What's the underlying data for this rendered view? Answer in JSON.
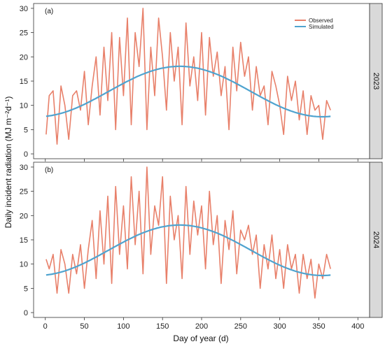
{
  "y_axis_label": "Daily incident radiation (MJ m⁻²d⁻¹)",
  "x_axis_label": "Day of year (d)",
  "legend": {
    "observed": "Observed",
    "simulated": "Simulated"
  },
  "colors": {
    "observed": "#e8806a",
    "simulated": "#4fa3cf",
    "strip": "#d9d9d9"
  },
  "chart_data": [
    {
      "type": "line",
      "panel_label": "(a)",
      "strip_label": "2023",
      "xlim": [
        -15,
        415
      ],
      "ylim": [
        -1,
        31
      ],
      "x_ticks": [
        0,
        50,
        100,
        150,
        200,
        250,
        300,
        350,
        400
      ],
      "y_ticks": [
        0,
        5,
        10,
        15,
        20,
        25,
        30
      ],
      "simulated_model": {
        "mean": 12.85,
        "amplitude": 5.2,
        "peak_day": 172,
        "period_days": 365
      },
      "series": [
        {
          "name": "Observed",
          "x": [
            1,
            5,
            10,
            15,
            20,
            25,
            30,
            35,
            40,
            45,
            50,
            55,
            60,
            65,
            70,
            75,
            80,
            85,
            90,
            95,
            100,
            105,
            110,
            115,
            120,
            125,
            130,
            135,
            140,
            145,
            150,
            155,
            160,
            165,
            170,
            175,
            180,
            185,
            190,
            195,
            200,
            205,
            210,
            215,
            220,
            225,
            230,
            235,
            240,
            245,
            250,
            255,
            260,
            265,
            270,
            275,
            280,
            285,
            290,
            295,
            300,
            305,
            310,
            315,
            320,
            325,
            330,
            335,
            340,
            345,
            350,
            355,
            360,
            365
          ],
          "y": [
            4,
            12,
            13,
            2,
            14,
            10,
            3,
            12,
            13,
            9,
            17,
            6,
            14,
            20,
            8,
            22,
            11,
            25,
            5,
            24,
            12,
            28,
            6,
            25,
            18,
            30,
            5,
            22,
            12,
            28,
            20,
            9,
            25,
            15,
            22,
            6,
            27,
            14,
            20,
            11,
            25,
            8,
            24,
            16,
            21,
            12,
            18,
            5,
            22,
            13,
            23,
            16,
            20,
            9,
            18,
            12,
            14,
            6,
            17,
            14,
            10,
            4,
            16,
            11,
            15,
            7,
            13,
            4,
            12,
            9,
            10,
            3,
            11,
            9
          ]
        },
        {
          "name": "Simulated",
          "x": [
            1,
            15,
            30,
            45,
            60,
            75,
            90,
            105,
            120,
            135,
            150,
            165,
            172,
            180,
            195,
            210,
            225,
            240,
            255,
            270,
            285,
            300,
            315,
            330,
            345,
            365
          ],
          "y": [
            7.8,
            8.0,
            8.7,
            9.6,
            10.7,
            11.9,
            13.2,
            14.5,
            15.7,
            16.7,
            17.4,
            17.9,
            18.0,
            18.0,
            17.6,
            16.9,
            16.0,
            14.8,
            13.6,
            12.3,
            11.1,
            9.9,
            8.9,
            8.2,
            7.8,
            7.7
          ]
        }
      ]
    },
    {
      "type": "line",
      "panel_label": "(b)",
      "strip_label": "2024",
      "xlim": [
        -15,
        415
      ],
      "ylim": [
        -1,
        31
      ],
      "x_ticks": [
        0,
        50,
        100,
        150,
        200,
        250,
        300,
        350,
        400
      ],
      "y_ticks": [
        0,
        5,
        10,
        15,
        20,
        25,
        30
      ],
      "x_tick_labels": [
        "0",
        "50",
        "100",
        "150",
        "200",
        "250",
        "300",
        "350",
        "400"
      ],
      "simulated_model": {
        "mean": 12.85,
        "amplitude": 5.2,
        "peak_day": 172,
        "period_days": 365
      },
      "series": [
        {
          "name": "Observed",
          "x": [
            1,
            5,
            10,
            15,
            20,
            25,
            30,
            35,
            40,
            45,
            50,
            55,
            60,
            65,
            70,
            75,
            80,
            85,
            90,
            95,
            100,
            105,
            110,
            115,
            120,
            125,
            130,
            135,
            140,
            145,
            150,
            155,
            160,
            165,
            170,
            175,
            180,
            185,
            190,
            195,
            200,
            205,
            210,
            215,
            220,
            225,
            230,
            235,
            240,
            245,
            250,
            255,
            260,
            265,
            270,
            275,
            280,
            285,
            290,
            295,
            300,
            305,
            310,
            315,
            320,
            325,
            330,
            335,
            340,
            345,
            350,
            355,
            360,
            365
          ],
          "y": [
            11,
            9,
            12,
            4,
            13,
            10,
            4,
            12,
            8,
            14,
            5,
            13,
            19,
            7,
            21,
            10,
            24,
            6,
            26,
            12,
            22,
            9,
            28,
            14,
            25,
            8,
            30,
            12,
            22,
            18,
            28,
            6,
            24,
            15,
            20,
            7,
            26,
            12,
            23,
            16,
            22,
            9,
            25,
            14,
            20,
            6,
            19,
            13,
            21,
            8,
            17,
            15,
            18,
            12,
            16,
            5,
            14,
            9,
            16,
            7,
            13,
            5,
            14,
            9,
            12,
            4,
            12,
            7,
            11,
            3,
            10,
            7,
            12,
            9
          ]
        },
        {
          "name": "Simulated",
          "x": [
            1,
            15,
            30,
            45,
            60,
            75,
            90,
            105,
            120,
            135,
            150,
            165,
            172,
            180,
            195,
            210,
            225,
            240,
            255,
            270,
            285,
            300,
            315,
            330,
            345,
            365
          ],
          "y": [
            7.8,
            8.0,
            8.7,
            9.6,
            10.7,
            11.9,
            13.2,
            14.5,
            15.7,
            16.7,
            17.4,
            17.9,
            18.0,
            18.0,
            17.6,
            16.9,
            16.0,
            14.8,
            13.6,
            12.3,
            11.1,
            9.9,
            8.9,
            8.2,
            7.8,
            7.7
          ]
        }
      ]
    }
  ]
}
